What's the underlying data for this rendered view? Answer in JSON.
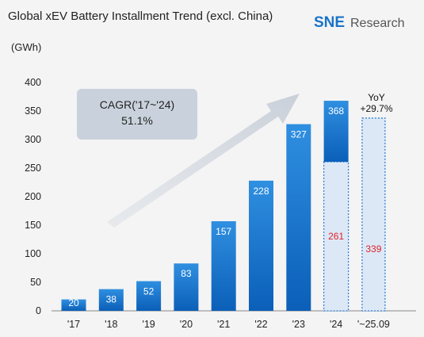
{
  "header": {
    "title": "Global xEV Battery Installment Trend (excl. China)",
    "unit": "(GWh)"
  },
  "logo": {
    "brand": "SNE",
    "suffix": "Research"
  },
  "annotation": {
    "cagr_line1": "CAGR('17~'24)",
    "cagr_line2": "51.1%",
    "yoy_line1": "YoY",
    "yoy_line2": "+29.7%"
  },
  "colors": {
    "bar_top": "#2f8fe0",
    "bar_bottom": "#0b5fb8",
    "bar_light": "#dde8f7",
    "dash_border": "#2a7fd8",
    "red_label": "#e0202a"
  },
  "chart_data": {
    "type": "bar",
    "categories": [
      "'17",
      "'18",
      "'19",
      "'20",
      "'21",
      "'22",
      "'23",
      "'24",
      "'~25.09"
    ],
    "values": [
      20,
      38,
      52,
      83,
      157,
      228,
      327,
      368,
      339
    ],
    "segments": {
      "'24": {
        "total": 368,
        "portion": 261
      },
      "'~25.09": {
        "value": 339,
        "style": "dashed"
      }
    },
    "yticks": [
      0,
      50,
      100,
      150,
      200,
      250,
      300,
      350,
      400
    ],
    "ylim": [
      0,
      400
    ],
    "grid": false
  }
}
